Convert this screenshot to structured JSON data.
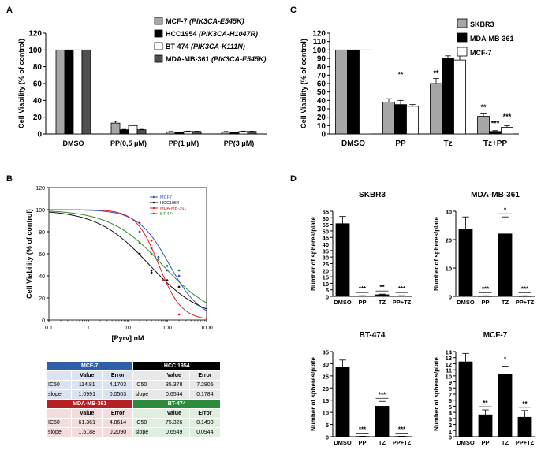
{
  "panels": [
    {
      "id": "A",
      "label": "A",
      "chart_data": {
        "type": "bar",
        "ylabel": "Cell Viability (% of control)",
        "ylim": [
          0,
          120
        ],
        "yticks": [
          0,
          20,
          40,
          60,
          80,
          100,
          120
        ],
        "categories": [
          "DMSO",
          "PP(0,5 μM)",
          "PP(1 μM)",
          "PP(3 μM)"
        ],
        "series": [
          {
            "name": "MCF-7",
            "genotype": "(PIK3CA-E545K)",
            "color": "#a6a6a6",
            "values": [
              100,
              13,
              2.5,
              2.5
            ],
            "errors": [
              0,
              2,
              0.5,
              0.5
            ]
          },
          {
            "name": "HCC1954",
            "genotype": "(PIK3CA-H1047R)",
            "color": "#000000",
            "values": [
              100,
              5,
              1.5,
              1.5
            ],
            "errors": [
              0,
              0.5,
              0.3,
              0.3
            ]
          },
          {
            "name": "BT-474",
            "genotype": "(PIK3CA-K111N)",
            "color": "#ffffff",
            "values": [
              100,
              10,
              3,
              3
            ],
            "errors": [
              0,
              0.8,
              0.4,
              0.4
            ]
          },
          {
            "name": "MDA-MB-361",
            "genotype": "(PIK3CA-E545K)",
            "color": "#505050",
            "values": [
              100,
              5,
              3,
              3
            ],
            "errors": [
              0,
              0.5,
              0.3,
              0.3
            ]
          }
        ],
        "legend": "top-right"
      }
    },
    {
      "id": "C",
      "label": "C",
      "chart_data": {
        "type": "bar",
        "ylabel": "Cell Viability (% of control)",
        "ylim": [
          0,
          120
        ],
        "yticks": [
          0,
          10,
          20,
          30,
          40,
          50,
          60,
          70,
          80,
          90,
          100,
          110,
          120
        ],
        "categories": [
          "DMSO",
          "PP",
          "Tz",
          "Tz+PP"
        ],
        "series": [
          {
            "name": "SKBR3",
            "color": "#a6a6a6",
            "values": [
              100,
              38,
              60,
              21
            ],
            "errors": [
              0,
              4,
              6,
              3
            ]
          },
          {
            "name": "MDA-MB-361",
            "color": "#000000",
            "values": [
              100,
              35,
              90,
              3
            ],
            "errors": [
              0,
              5,
              3,
              1
            ]
          },
          {
            "name": "MCF-7",
            "color": "#ffffff",
            "values": [
              100,
              33,
              88,
              8
            ],
            "errors": [
              0,
              2,
              7,
              2
            ]
          }
        ],
        "annotations": [
          {
            "text": "**",
            "category": "PP",
            "y": 68,
            "bracket": true
          },
          {
            "text": "**",
            "category": "Tz",
            "series": 0,
            "y": 70
          },
          {
            "text": "**",
            "category": "Tz+PP",
            "series": 0,
            "y": 29
          },
          {
            "text": "***",
            "category": "Tz+PP",
            "series": 1,
            "y": 10
          },
          {
            "text": "***",
            "category": "Tz+PP",
            "series": 2,
            "y": 18
          }
        ],
        "legend": "top-right"
      }
    },
    {
      "id": "B",
      "label": "B",
      "chart_data": {
        "type": "line",
        "xscale": "log",
        "xlabel": "[Pyrv] nM",
        "ylabel": "Cell Viability (% of control)",
        "xlim": [
          0.1,
          1000
        ],
        "ylim": [
          0,
          120
        ],
        "xticks": [
          0.1,
          1,
          10,
          100,
          1000
        ],
        "yticks": [
          0,
          20,
          40,
          60,
          80,
          100,
          120
        ],
        "series": [
          {
            "name": "MCF7",
            "color": "#3355cc",
            "ic50": 114.81,
            "slope": 1.0991,
            "points": [
              [
                20,
                80
              ],
              [
                40,
                65
              ],
              [
                60,
                57
              ],
              [
                100,
                45
              ],
              [
                200,
                40
              ]
            ]
          },
          {
            "name": "HCC1954",
            "color": "#111111",
            "ic50": 35.378,
            "slope": 0.6544,
            "points": [
              [
                20,
                60
              ],
              [
                40,
                45
              ],
              [
                40,
                43
              ],
              [
                100,
                36
              ],
              [
                200,
                30
              ]
            ]
          },
          {
            "name": "MDA-MB-361",
            "color": "#e02020",
            "ic50": 61.361,
            "slope": 1.5188,
            "points": [
              [
                20,
                88
              ],
              [
                40,
                72
              ],
              [
                60,
                55
              ],
              [
                80,
                36
              ],
              [
                200,
                5
              ]
            ]
          },
          {
            "name": "BT-474",
            "color": "#2e8b2e",
            "ic50": 75.326,
            "slope": 0.6549,
            "points": [
              [
                20,
                70
              ],
              [
                40,
                60
              ],
              [
                60,
                55
              ],
              [
                100,
                49
              ],
              [
                200,
                45
              ]
            ]
          }
        ],
        "legend": "top-right"
      }
    },
    {
      "id": "D1",
      "label": "D",
      "chart_data": {
        "type": "bar",
        "title": "SKBR3",
        "ylabel": "Number of spheres/plate",
        "ylim": [
          0,
          65
        ],
        "yticks": [
          0,
          5,
          10,
          15,
          20,
          25,
          30,
          35,
          40,
          45,
          50,
          55,
          60,
          65
        ],
        "categories": [
          "DMSO",
          "PP",
          "TZ",
          "PP+TZ"
        ],
        "values": [
          55.5,
          0.3,
          1.2,
          0.3
        ],
        "errors": [
          5.5,
          0.2,
          0.5,
          0.2
        ],
        "annotations": [
          "",
          "***",
          "**",
          "***"
        ]
      }
    },
    {
      "id": "D2",
      "label": "",
      "chart_data": {
        "type": "bar",
        "title": "MDA-MB-361",
        "ylabel": "Number of spheres/plate",
        "ylim": [
          0,
          30
        ],
        "yticks": [
          0,
          10,
          20,
          30
        ],
        "categories": [
          "DMSO",
          "PP",
          "TZ",
          "PP+TZ"
        ],
        "values": [
          23.5,
          0.1,
          22,
          0.1
        ],
        "errors": [
          4.5,
          0.1,
          6,
          0.1
        ],
        "annotations": [
          "",
          "***",
          "*",
          "***"
        ]
      }
    },
    {
      "id": "D3",
      "label": "",
      "chart_data": {
        "type": "bar",
        "title": "BT-474",
        "ylabel": "Number of spheres/plate",
        "ylim": [
          0,
          35
        ],
        "yticks": [
          0,
          5,
          10,
          15,
          20,
          25,
          30,
          35
        ],
        "categories": [
          "DMSO",
          "PP",
          "TZ",
          "PP+TZ"
        ],
        "values": [
          28.5,
          0.1,
          12.5,
          0.1
        ],
        "errors": [
          3,
          0.1,
          2,
          0.1
        ],
        "annotations": [
          "",
          "***",
          "***",
          "***"
        ]
      }
    },
    {
      "id": "D4",
      "label": "",
      "chart_data": {
        "type": "bar",
        "title": "MCF-7",
        "ylabel": "Number of spheres/plate",
        "ylim": [
          0,
          14
        ],
        "yticks": [
          0,
          1,
          2,
          3,
          4,
          5,
          6,
          7,
          8,
          9,
          10,
          11,
          12,
          13,
          14
        ],
        "categories": [
          "DMSO",
          "PP",
          "TZ",
          "PP+TZ"
        ],
        "values": [
          12.3,
          3.6,
          10.3,
          3.2
        ],
        "errors": [
          1.4,
          0.8,
          1.3,
          1.1
        ],
        "annotations": [
          "",
          "**",
          "*",
          "**"
        ]
      }
    }
  ],
  "ic50_table": {
    "blocks": [
      {
        "name": "MCF-7",
        "header_color": "#2e5fa8",
        "row_color": "#dce3f0",
        "col_value": "Value",
        "col_error": "Error",
        "rows": [
          {
            "label": "IC50",
            "value": "114.81",
            "error": "4.1703"
          },
          {
            "label": "slope",
            "value": "1.0991",
            "error": "0.0503"
          }
        ]
      },
      {
        "name": "HCC 1954",
        "header_color": "#000000",
        "row_color": "#e8e8e8",
        "col_value": "Value",
        "col_error": "Error",
        "rows": [
          {
            "label": "IC50",
            "value": "35.378",
            "error": "7.2805"
          },
          {
            "label": "slope",
            "value": "0.6544",
            "error": "0.1784"
          }
        ]
      },
      {
        "name": "MDA-MB-361",
        "header_color": "#b52025",
        "row_color": "#f2dcdc",
        "col_value": "Value",
        "col_error": "Error",
        "rows": [
          {
            "label": "IC50",
            "value": "61.361",
            "error": "4.8614"
          },
          {
            "label": "slope",
            "value": "1.5188",
            "error": "0.2090"
          }
        ]
      },
      {
        "name": "BT-474",
        "header_color": "#2e8b3e",
        "row_color": "#dfeedf",
        "col_value": "Value",
        "col_error": "Error",
        "rows": [
          {
            "label": "IC50",
            "value": "75.326",
            "error": "8.1498"
          },
          {
            "label": "slope",
            "value": "0.6549",
            "error": "0.0944"
          }
        ]
      }
    ]
  }
}
